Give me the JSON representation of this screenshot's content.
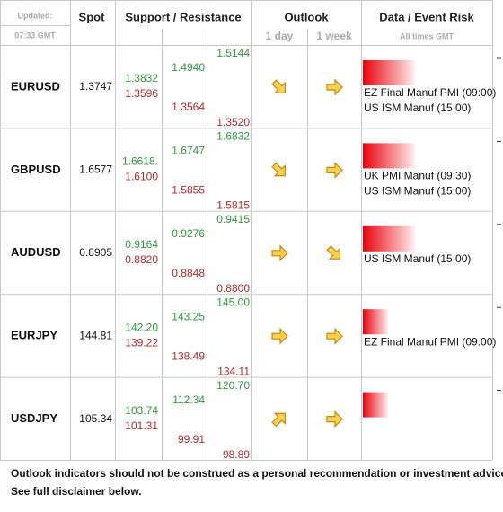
{
  "header": {
    "updated": "Updated:",
    "time": "07:33 GMT",
    "spot": "Spot",
    "levels": "Support / Resistance",
    "outlook": "Outlook",
    "day": "1 day",
    "week": "1 week",
    "events": "Data / Event Risk",
    "times": "All times GMT"
  },
  "rows": [
    {
      "pair": "EURUSD",
      "spot": "1.3747",
      "levels": [
        [
          "1.3832",
          "1.3596"
        ],
        [
          "1.4940",
          "1.3564"
        ],
        [
          "1.5144",
          "1.3520"
        ]
      ],
      "outlook": [
        "down",
        "flat"
      ],
      "risk": "high",
      "events": [
        "EZ Final Manuf PMI (09:00)",
        "US ISM Manuf (15:00)"
      ]
    },
    {
      "pair": "GBPUSD",
      "spot": "1.6577",
      "levels": [
        [
          "1.6618.",
          "1.6100"
        ],
        [
          "1.6747",
          "1.5855"
        ],
        [
          "1.6832",
          "1.5815"
        ]
      ],
      "outlook": [
        "down",
        "flat"
      ],
      "risk": "high",
      "events": [
        "UK PMI Manuf (09:30)",
        "US ISM Manuf (15:00)"
      ]
    },
    {
      "pair": "AUDUSD",
      "spot": "0.8905",
      "levels": [
        [
          "0.9164",
          "0.8820"
        ],
        [
          "0.9276",
          "0.8848"
        ],
        [
          "0.9415",
          "0.8800"
        ]
      ],
      "outlook": [
        "flat",
        "down"
      ],
      "risk": "high",
      "events": [
        "US ISM Manuf (15:00)"
      ]
    },
    {
      "pair": "EURJPY",
      "spot": "144.81",
      "levels": [
        [
          "142.20",
          "139.22"
        ],
        [
          "143.25",
          "138.49"
        ],
        [
          "145.00",
          "134.11"
        ]
      ],
      "outlook": [
        "flat",
        "flat"
      ],
      "risk": "medium",
      "events": [
        "EZ Final Manuf PMI (09:00)"
      ]
    },
    {
      "pair": "USDJPY",
      "spot": "105.34",
      "levels": [
        [
          "103.74",
          "101.31"
        ],
        [
          "112.34",
          "99.91"
        ],
        [
          "120.70",
          "98.89"
        ]
      ],
      "outlook": [
        "up",
        "flat"
      ],
      "risk": "medium",
      "events": []
    }
  ],
  "footer": [
    "Outlook indicators should not be construed as a personal recommendation or investment advice.",
    "See full disclaimer below."
  ]
}
